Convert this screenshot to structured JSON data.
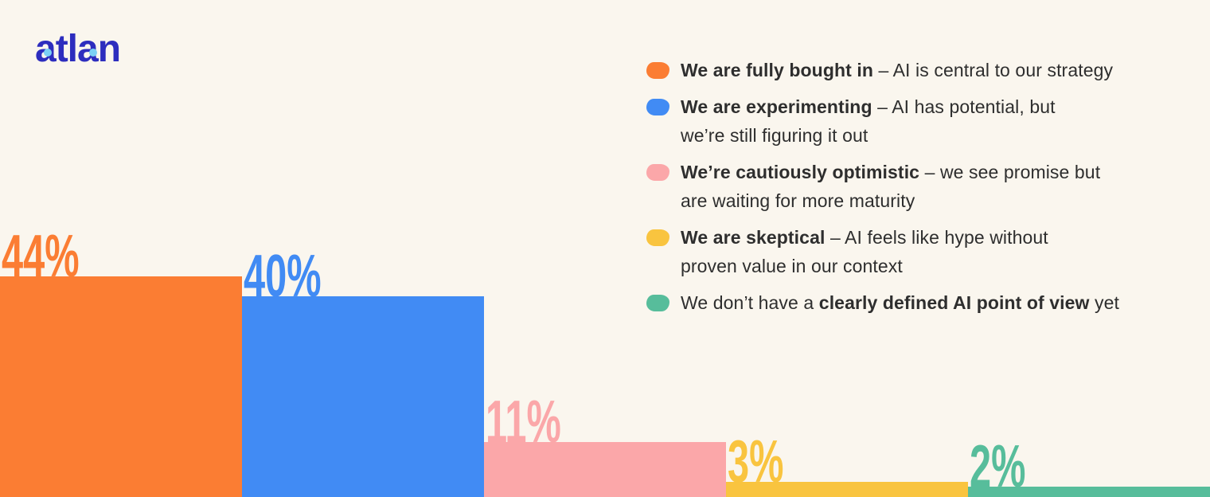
{
  "background_color": "#FAF6EE",
  "brand": {
    "logo_text": "atlan",
    "logo_color": "#2D2DBE",
    "logo_dot_color": "#7BD0F5"
  },
  "chart_data": {
    "type": "bar",
    "unit": "%",
    "categories": [
      "We are fully bought in",
      "We are experimenting",
      "We’re cautiously optimistic",
      "We are skeptical",
      "We don’t have a clearly defined AI point of view yet"
    ],
    "values": [
      44,
      40,
      11,
      3,
      2
    ],
    "value_labels": [
      "44%",
      "40%",
      "11%",
      "3%",
      "2%"
    ],
    "colors": [
      "#FB7D33",
      "#418BF4",
      "#FBA7A9",
      "#F9C43F",
      "#57BD9B"
    ],
    "grid": false,
    "axes_visible": false,
    "value_labels_position": "above bar, left-aligned",
    "bars_cropped_at_bottom_edge": true,
    "legend_position": "top-right"
  },
  "legend": {
    "items": [
      {
        "name": "fully-bought-in",
        "color": "#FB7D33",
        "segments": [
          {
            "text": "We are fully bought in",
            "bold": true
          },
          {
            "text": " – AI is central to our strategy",
            "bold": false
          }
        ]
      },
      {
        "name": "experimenting",
        "color": "#418BF4",
        "segments": [
          {
            "text": "We are experimenting",
            "bold": true
          },
          {
            "text": " – AI has potential, but\nwe’re still figuring it out",
            "bold": false
          }
        ]
      },
      {
        "name": "cautiously-optimistic",
        "color": "#FBA7A9",
        "segments": [
          {
            "text": "We’re cautiously optimistic",
            "bold": true
          },
          {
            "text": " – we see promise but\nare waiting for more maturity",
            "bold": false
          }
        ]
      },
      {
        "name": "skeptical",
        "color": "#F9C43F",
        "segments": [
          {
            "text": "We are skeptical",
            "bold": true
          },
          {
            "text": " – AI feels like hype without\nproven value in our context",
            "bold": false
          }
        ]
      },
      {
        "name": "no-defined-pov",
        "color": "#57BD9B",
        "segments": [
          {
            "text": "We don’t have a ",
            "bold": false
          },
          {
            "text": "clearly defined AI point of view",
            "bold": true
          },
          {
            "text": " yet",
            "bold": false
          }
        ]
      }
    ]
  }
}
